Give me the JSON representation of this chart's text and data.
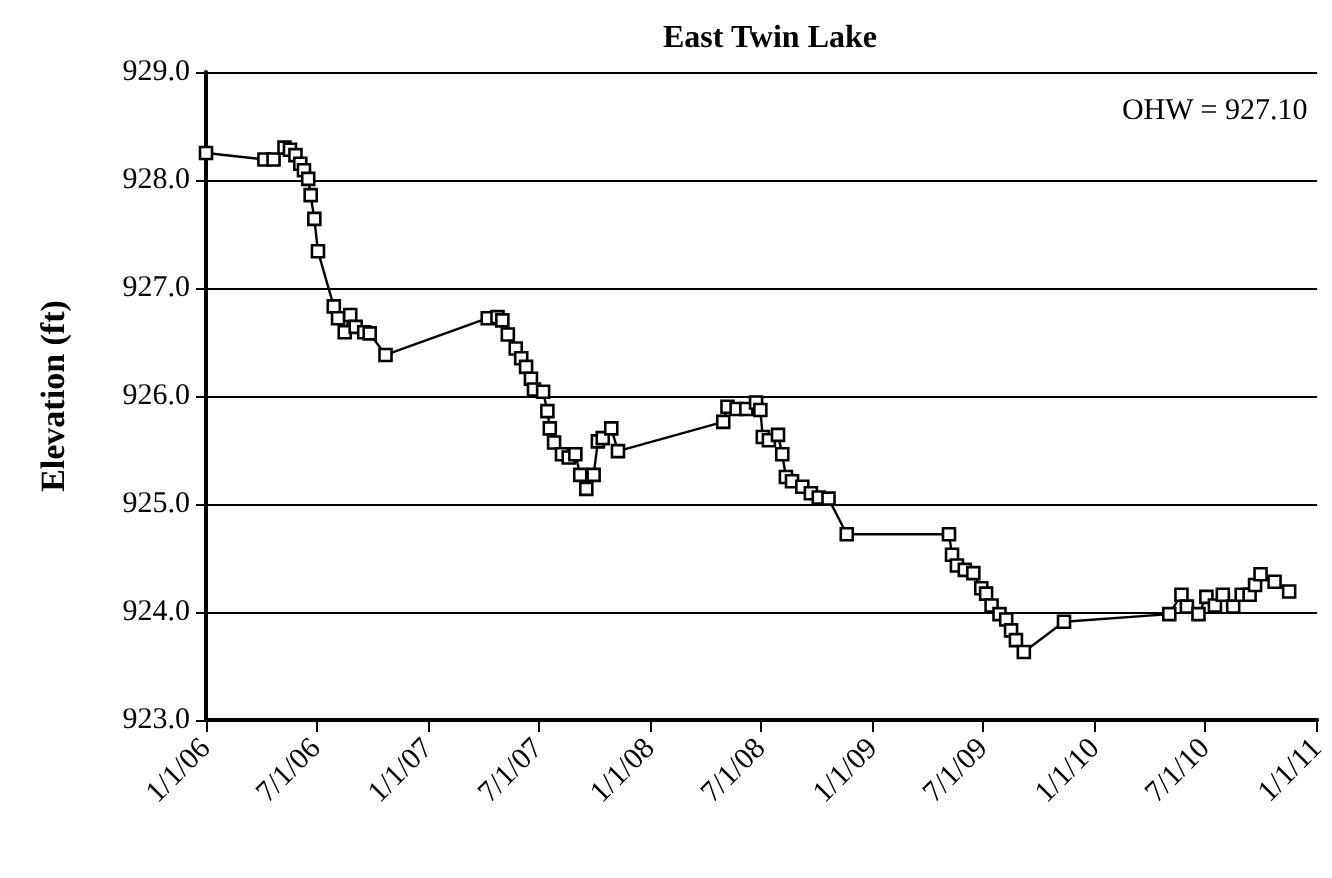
{
  "chart_data": {
    "type": "line",
    "title": "East Twin Lake",
    "ylabel": "Elevation (ft)",
    "annotations": [
      "OHW = 927.10"
    ],
    "x": [
      "2006-01-01",
      "2006-04-07",
      "2006-04-22",
      "2006-05-10",
      "2006-05-19",
      "2006-05-28",
      "2006-06-05",
      "2006-06-11",
      "2006-06-18",
      "2006-06-22",
      "2006-06-28",
      "2006-07-04",
      "2006-07-30",
      "2006-08-06",
      "2006-08-17",
      "2006-08-26",
      "2006-09-04",
      "2006-09-18",
      "2006-09-27",
      "2006-10-23",
      "2007-04-09",
      "2007-04-25",
      "2007-05-03",
      "2007-05-12",
      "2007-05-25",
      "2007-06-03",
      "2007-06-11",
      "2007-06-19",
      "2007-06-24",
      "2007-07-09",
      "2007-07-16",
      "2007-07-20",
      "2007-07-27",
      "2007-08-09",
      "2007-08-20",
      "2007-08-31",
      "2007-09-08",
      "2007-09-18",
      "2007-09-30",
      "2007-10-07",
      "2007-10-15",
      "2007-10-29",
      "2007-11-09",
      "2008-04-30",
      "2008-05-07",
      "2008-05-22",
      "2008-06-07",
      "2008-06-23",
      "2008-06-30",
      "2008-07-04",
      "2008-07-14",
      "2008-07-29",
      "2008-08-05",
      "2008-08-11",
      "2008-08-21",
      "2008-09-07",
      "2008-09-21",
      "2008-10-04",
      "2008-10-20",
      "2008-11-19",
      "2009-05-06",
      "2009-05-11",
      "2009-05-19",
      "2009-06-01",
      "2009-06-15",
      "2009-06-28",
      "2009-07-06",
      "2009-07-15",
      "2009-07-28",
      "2009-08-08",
      "2009-08-16",
      "2009-08-24",
      "2009-09-06",
      "2009-11-11",
      "2010-05-03",
      "2010-05-23",
      "2010-06-01",
      "2010-06-20",
      "2010-07-03",
      "2010-07-17",
      "2010-07-30",
      "2010-08-16",
      "2010-08-30",
      "2010-09-12",
      "2010-09-21",
      "2010-09-30",
      "2010-10-23",
      "2010-11-16"
    ],
    "series": [
      {
        "color": "#000000",
        "values": [
          928.25,
          928.19,
          928.19,
          928.3,
          928.28,
          928.23,
          928.15,
          928.09,
          928.01,
          927.86,
          927.64,
          927.34,
          926.83,
          926.72,
          926.59,
          926.75,
          926.64,
          926.59,
          926.58,
          926.38,
          926.72,
          926.73,
          926.7,
          926.57,
          926.44,
          926.35,
          926.27,
          926.16,
          926.06,
          926.04,
          925.86,
          925.7,
          925.57,
          925.46,
          925.43,
          925.46,
          925.27,
          925.14,
          925.27,
          925.58,
          925.61,
          925.7,
          925.49,
          925.76,
          925.9,
          925.88,
          925.88,
          925.94,
          925.87,
          925.62,
          925.59,
          925.64,
          925.46,
          925.25,
          925.21,
          925.16,
          925.1,
          925.06,
          925.05,
          924.72,
          924.72,
          924.53,
          924.43,
          924.39,
          924.36,
          924.22,
          924.17,
          924.06,
          923.98,
          923.93,
          923.83,
          923.74,
          923.63,
          923.91,
          923.98,
          924.16,
          924.05,
          923.98,
          924.14,
          924.06,
          924.16,
          924.05,
          924.16,
          924.16,
          924.25,
          924.35,
          924.28,
          924.19
        ]
      }
    ],
    "xlim": [
      "2006-01-01",
      "2011-01-01"
    ],
    "xticks": [
      {
        "value": "2006-01-01",
        "label": "1/1/06"
      },
      {
        "value": "2006-07-01",
        "label": "7/1/06"
      },
      {
        "value": "2007-01-01",
        "label": "1/1/07"
      },
      {
        "value": "2007-07-01",
        "label": "7/1/07"
      },
      {
        "value": "2008-01-01",
        "label": "1/1/08"
      },
      {
        "value": "2008-07-01",
        "label": "7/1/08"
      },
      {
        "value": "2009-01-01",
        "label": "1/1/09"
      },
      {
        "value": "2009-07-01",
        "label": "7/1/09"
      },
      {
        "value": "2010-01-01",
        "label": "1/1/10"
      },
      {
        "value": "2010-07-01",
        "label": "7/1/10"
      },
      {
        "value": "2011-01-01",
        "label": "1/1/11"
      }
    ],
    "ylim": [
      923,
      929
    ],
    "yticks": [
      {
        "value": 923,
        "label": "923.0"
      },
      {
        "value": 924,
        "label": "924.0"
      },
      {
        "value": 925,
        "label": "925.0"
      },
      {
        "value": 926,
        "label": "926.0"
      },
      {
        "value": 927,
        "label": "927.0"
      },
      {
        "value": 928,
        "label": "928.0"
      },
      {
        "value": 929,
        "label": "929.0"
      }
    ],
    "grid": "y",
    "marker": "square",
    "line_style": "solid"
  }
}
